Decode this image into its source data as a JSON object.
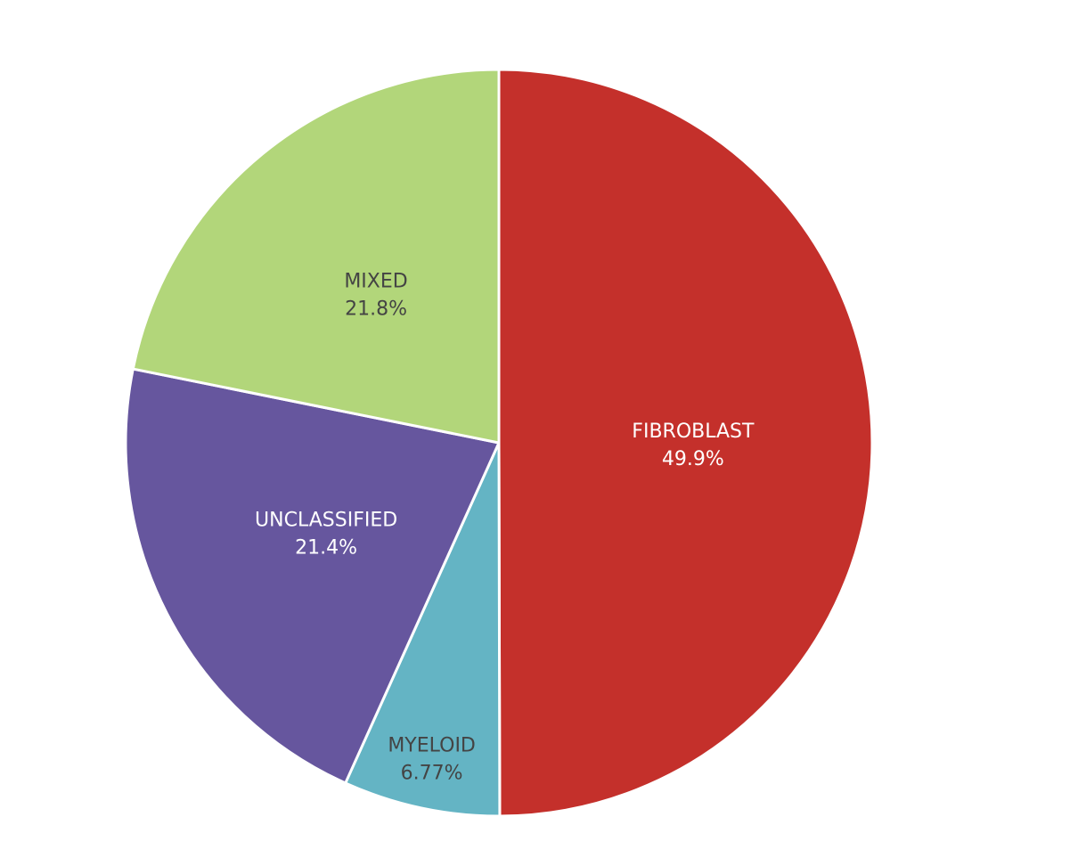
{
  "chart_data": {
    "type": "pie",
    "title": "",
    "slices": [
      {
        "label": "FIBROBLAST",
        "value": 49.9,
        "value_label": "49.9%",
        "color": "#c4302b",
        "text_color": "#ffffff"
      },
      {
        "label": "MYELOID",
        "value": 6.77,
        "value_label": "6.77%",
        "color": "#64b4c4",
        "text_color": "#444444"
      },
      {
        "label": "UNCLASSIFIED",
        "value": 21.4,
        "value_label": "21.4%",
        "color": "#66569e",
        "text_color": "#ffffff"
      },
      {
        "label": "MIXED",
        "value": 21.8,
        "value_label": "21.8%",
        "color": "#b2d67a",
        "text_color": "#444444"
      }
    ],
    "start_angle_deg": 0,
    "direction": "clockwise",
    "legend": "none"
  }
}
